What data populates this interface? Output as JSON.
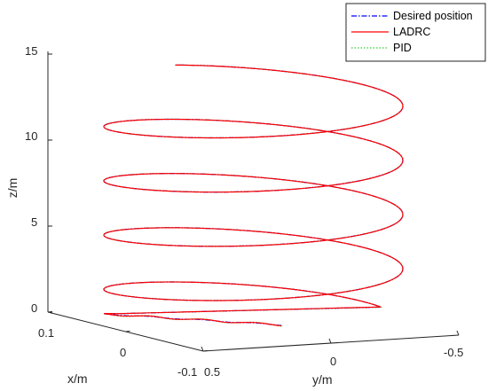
{
  "chart_data": {
    "type": "line",
    "projection": "3d",
    "xlabel": "x/m",
    "ylabel": "y/m",
    "zlabel": "z/m",
    "x_ticks": [
      "0.1",
      "0",
      "-0.1"
    ],
    "y_ticks": [
      "0.5",
      "0",
      "-0.5"
    ],
    "z_ticks": [
      "0",
      "5",
      "10",
      "15"
    ],
    "xlim": [
      -0.1,
      0.1
    ],
    "ylim": [
      -0.5,
      0.5
    ],
    "zlim": [
      0,
      15
    ],
    "grid": false,
    "legend_position": "top-right",
    "helix": {
      "turns": 4.25,
      "z_start": 0.5,
      "z_end": 13.9,
      "y_amplitude": 0.5,
      "x_amplitude": 0.1
    },
    "series": [
      {
        "name": "Desired position",
        "color": "#0000ff",
        "style": "dash-dot"
      },
      {
        "name": "LADRC",
        "color": "#ff0000",
        "style": "solid"
      },
      {
        "name": "PID",
        "color": "#33cc33",
        "style": "dotted"
      }
    ]
  }
}
